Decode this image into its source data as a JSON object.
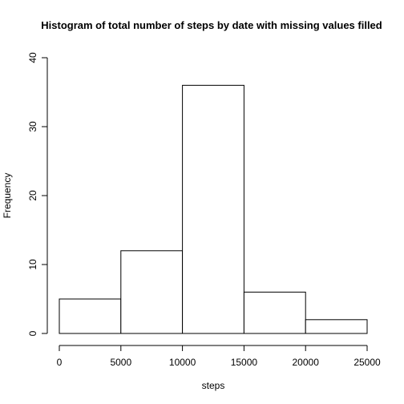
{
  "chart_data": {
    "type": "histogram",
    "title": "Histogram of total number of steps by date with missing values filled",
    "xlabel": "steps",
    "ylabel": "Frequency",
    "bins": [
      {
        "from": 0,
        "to": 5000,
        "count": 5
      },
      {
        "from": 5000,
        "to": 10000,
        "count": 12
      },
      {
        "from": 10000,
        "to": 15000,
        "count": 36
      },
      {
        "from": 15000,
        "to": 20000,
        "count": 6
      },
      {
        "from": 20000,
        "to": 25000,
        "count": 2
      }
    ],
    "xlim": [
      0,
      25000
    ],
    "ylim": [
      0,
      40
    ],
    "x_ticks": [
      0,
      5000,
      10000,
      15000,
      20000,
      25000
    ],
    "y_ticks": [
      0,
      10,
      20,
      30,
      40
    ],
    "grid": false,
    "bar_fill": "#ffffff",
    "bar_stroke": "#000000"
  }
}
